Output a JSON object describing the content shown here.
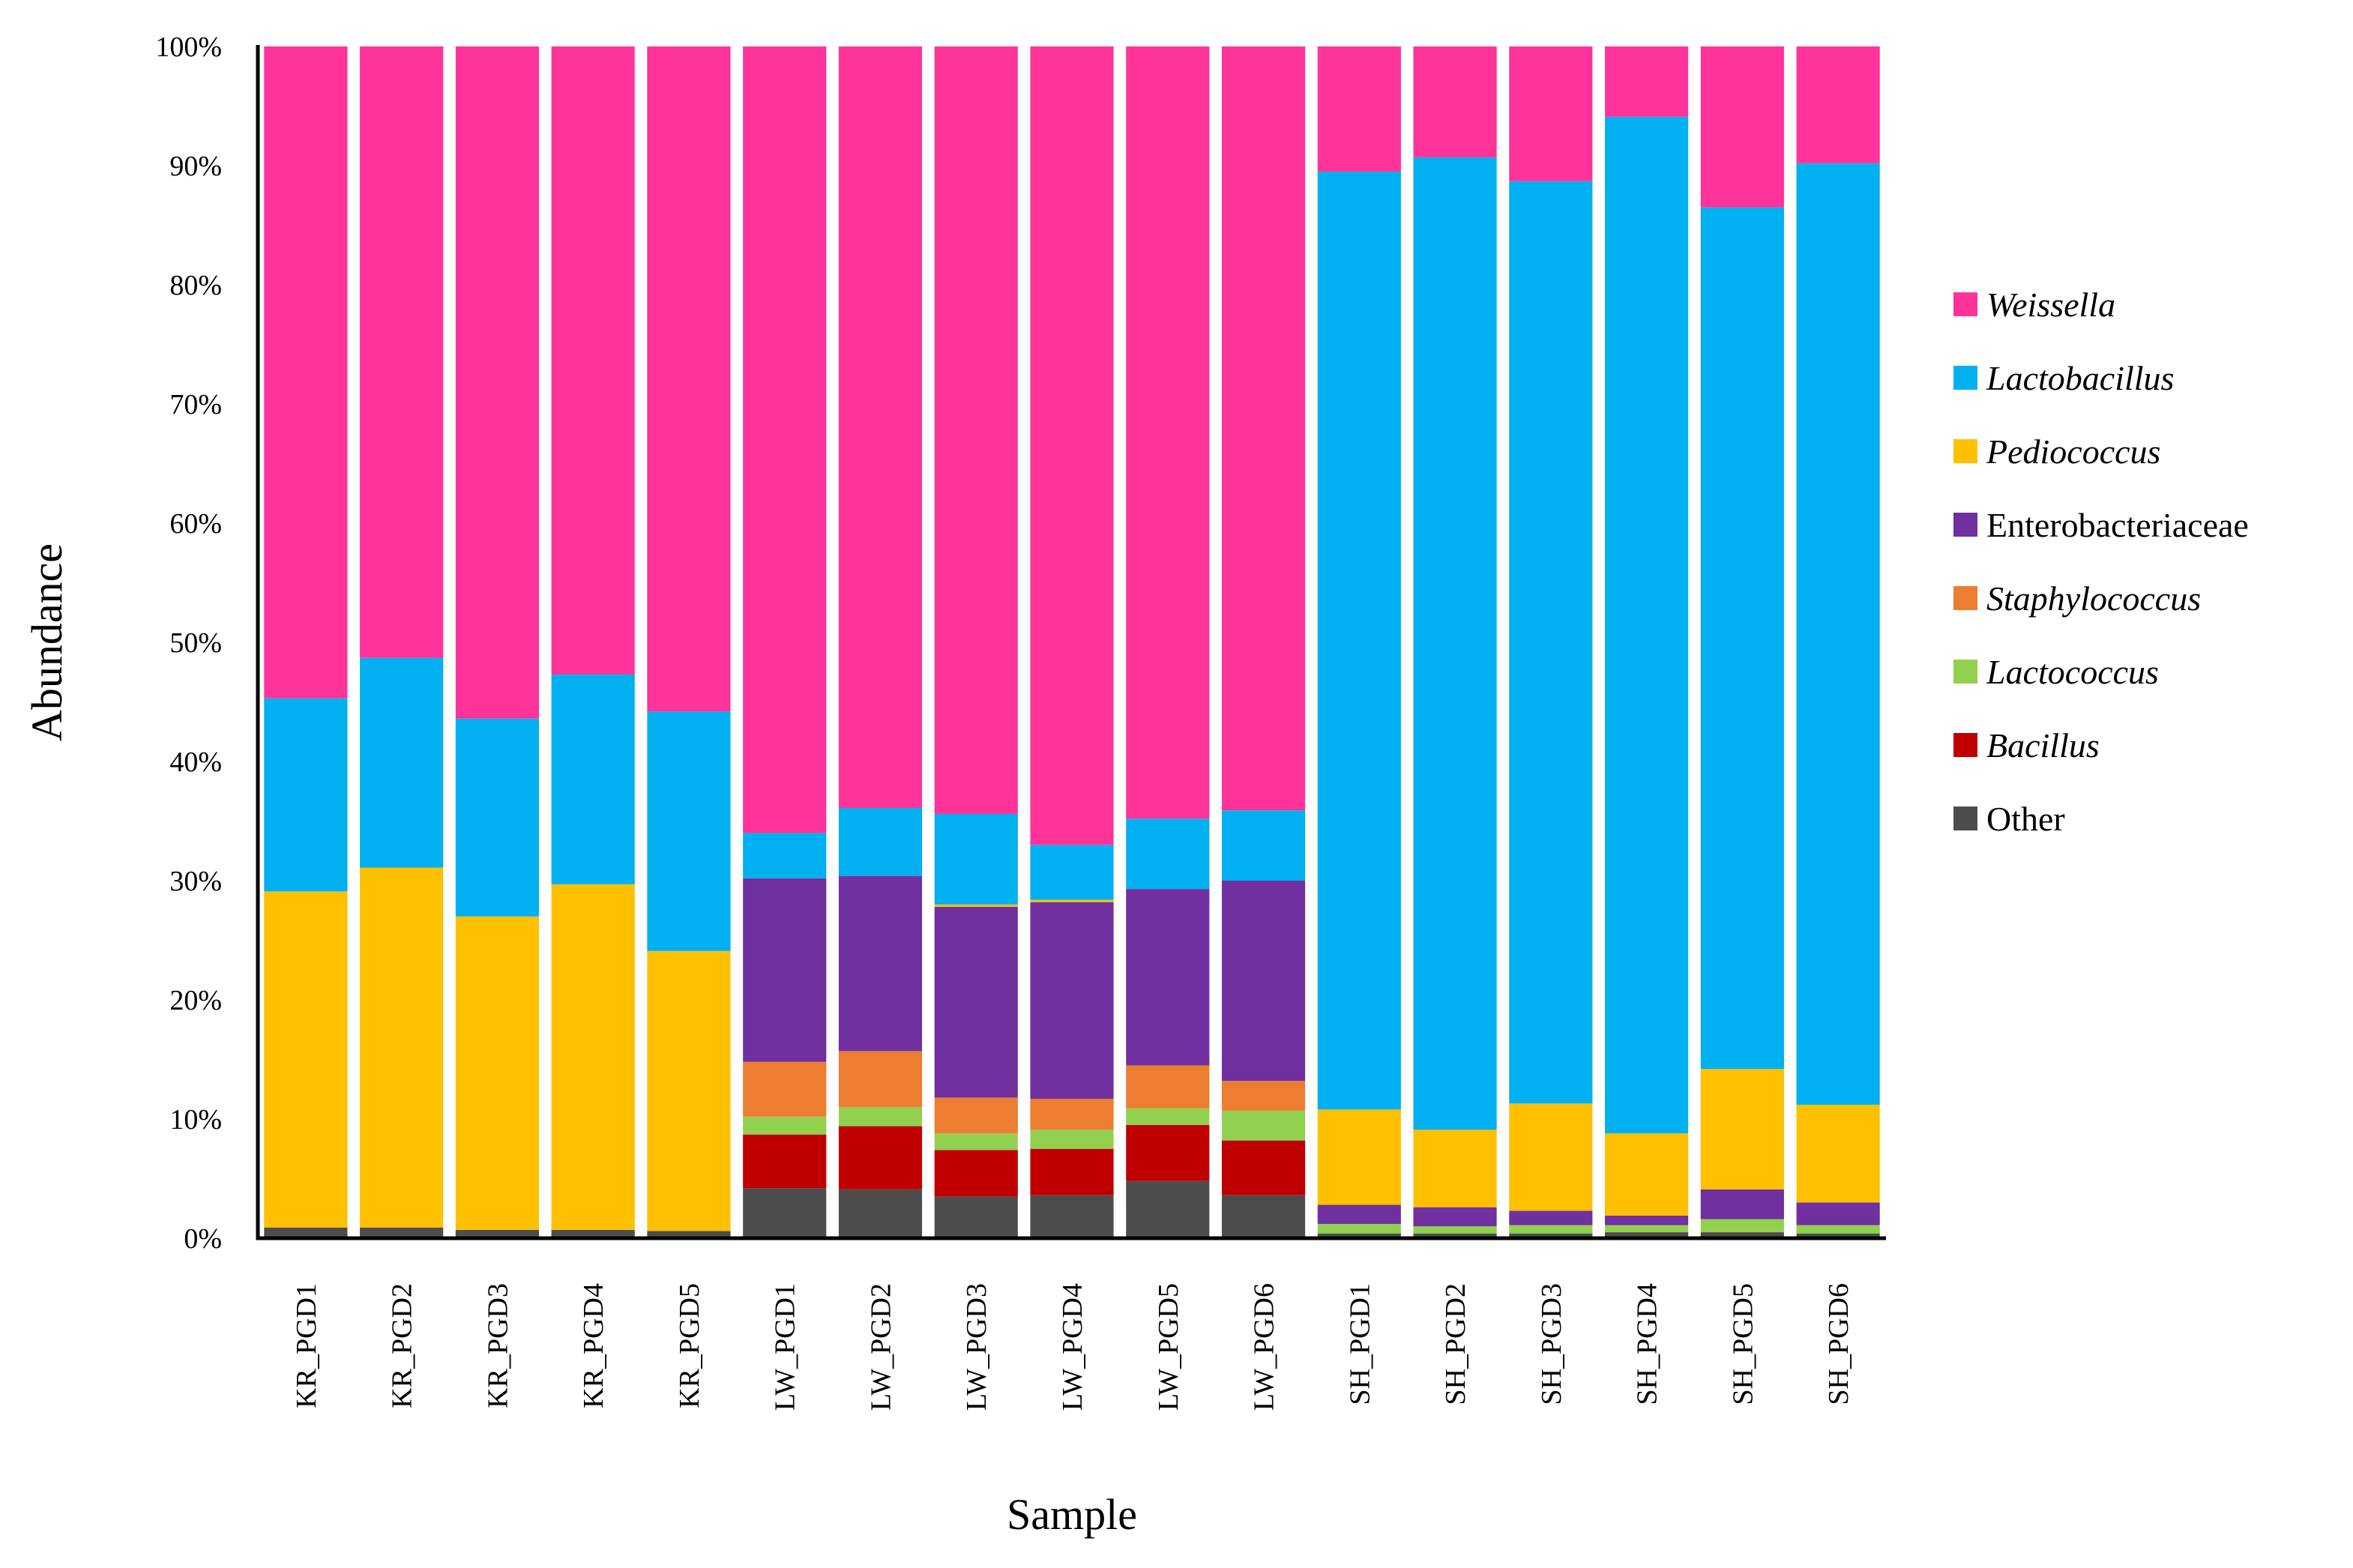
{
  "chart_data": {
    "type": "bar",
    "stacked": true,
    "percent": true,
    "xlabel": "Sample",
    "ylabel": "Abundance",
    "ylim": [
      0,
      100
    ],
    "yticks": [
      0,
      10,
      20,
      30,
      40,
      50,
      60,
      70,
      80,
      90,
      100
    ],
    "ytick_suffix": "%",
    "categories": [
      "KR_PGD1",
      "KR_PGD2",
      "KR_PGD3",
      "KR_PGD4",
      "KR_PGD5",
      "LW_PGD1",
      "LW_PGD2",
      "LW_PGD3",
      "LW_PGD4",
      "LW_PGD5",
      "LW_PGD6",
      "SH_PGD1",
      "SH_PGD2",
      "SH_PGD3",
      "SH_PGD4",
      "SH_PGD5",
      "SH_PGD6"
    ],
    "legend_position": "right",
    "grid": false,
    "series": [
      {
        "name": "Other",
        "italic": false,
        "color": "#4d4d4d",
        "values": [
          0.9,
          0.9,
          0.7,
          0.7,
          0.6,
          4.2,
          4.1,
          3.5,
          3.6,
          4.8,
          3.6,
          0.4,
          0.4,
          0.4,
          0.5,
          0.5,
          0.4
        ]
      },
      {
        "name": "Bacillus",
        "italic": true,
        "color": "#c00000",
        "values": [
          0.0,
          0.0,
          0.0,
          0.0,
          0.0,
          4.5,
          5.3,
          3.9,
          3.9,
          4.7,
          4.6,
          0.0,
          0.0,
          0.0,
          0.0,
          0.0,
          0.0
        ]
      },
      {
        "name": "Lactococcus",
        "italic": true,
        "color": "#92d050",
        "values": [
          0.0,
          0.0,
          0.0,
          0.0,
          0.0,
          1.5,
          1.6,
          1.4,
          1.6,
          1.4,
          2.5,
          0.8,
          0.6,
          0.7,
          0.6,
          1.1,
          0.7
        ]
      },
      {
        "name": "Staphylococcus",
        "italic": true,
        "color": "#ed7d31",
        "values": [
          0.0,
          0.0,
          0.0,
          0.0,
          0.0,
          4.6,
          4.7,
          3.0,
          2.6,
          3.6,
          2.5,
          0.0,
          0.0,
          0.0,
          0.0,
          0.0,
          0.0
        ]
      },
      {
        "name": "Enterobacteriaceae",
        "italic": false,
        "color": "#7030a0",
        "values": [
          0.0,
          0.0,
          0.0,
          0.0,
          0.0,
          15.4,
          14.7,
          16.0,
          16.5,
          14.8,
          16.8,
          1.6,
          1.6,
          1.2,
          0.8,
          2.5,
          1.9
        ]
      },
      {
        "name": "Pediococcus",
        "italic": true,
        "color": "#ffc000",
        "values": [
          28.2,
          30.2,
          26.3,
          29.0,
          23.5,
          0.0,
          0.0,
          0.2,
          0.2,
          0.0,
          0.0,
          8.0,
          6.5,
          9.0,
          6.9,
          10.1,
          8.2
        ]
      },
      {
        "name": "Lactobacillus",
        "italic": true,
        "color": "#00b0f0",
        "values": [
          16.2,
          17.6,
          16.6,
          17.6,
          20.1,
          3.8,
          5.7,
          7.6,
          4.6,
          5.9,
          5.9,
          78.7,
          81.6,
          77.4,
          85.3,
          72.3,
          79.0
        ]
      },
      {
        "name": "Weissella",
        "italic": true,
        "color": "#ff3399",
        "values": [
          54.7,
          51.3,
          56.4,
          52.7,
          55.8,
          66.0,
          63.9,
          64.4,
          67.0,
          64.8,
          64.1,
          10.5,
          9.3,
          11.3,
          5.9,
          13.5,
          9.8
        ]
      }
    ],
    "legend_order": [
      "Weissella",
      "Lactobacillus",
      "Pediococcus",
      "Enterobacteriaceae",
      "Staphylococcus",
      "Lactococcus",
      "Bacillus",
      "Other"
    ]
  }
}
